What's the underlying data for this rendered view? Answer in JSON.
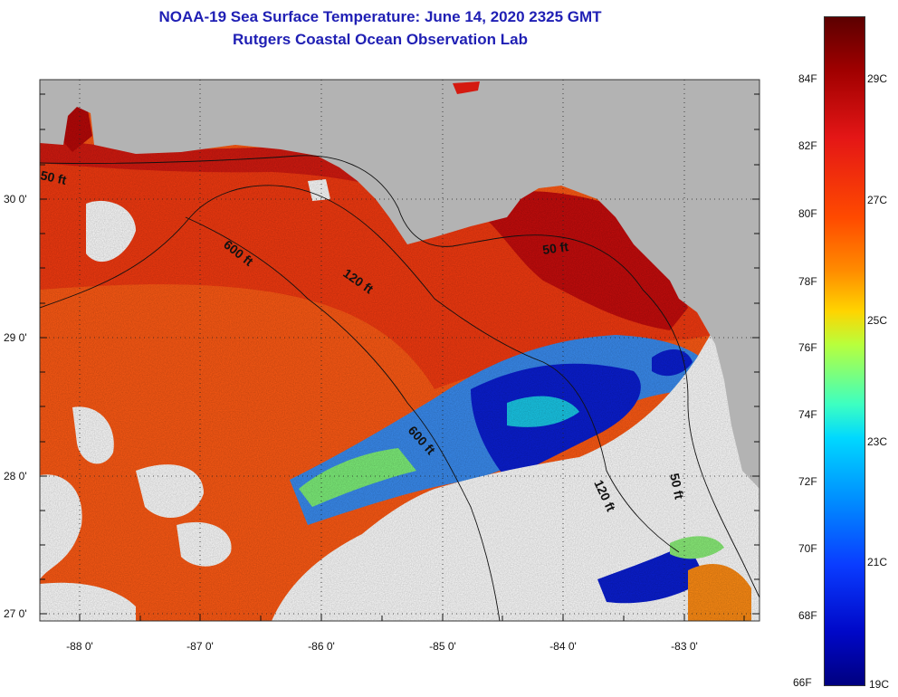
{
  "title": {
    "line1": "NOAA-19 Sea Surface Temperature:  June 14, 2020 2325 GMT",
    "line2": "Rutgers Coastal Ocean Observation Lab"
  },
  "axes": {
    "latitude_labels": [
      "30 0'",
      "29 0'",
      "28 0'",
      "27 0'"
    ],
    "longitude_labels": [
      "-88 0'",
      "-87 0'",
      "-86 0'",
      "-85 0'",
      "-84 0'",
      "-83 0'"
    ]
  },
  "contours": {
    "c50_left": "50 ft",
    "c600_top": "600 ft",
    "c120_top": "120 ft",
    "c50_right": "50 ft",
    "c600_mid": "600 ft",
    "c120_bottom": "120 ft",
    "c50_bottom": "50 ft"
  },
  "colorbar": {
    "fahrenheit": [
      "84F",
      "82F",
      "80F",
      "78F",
      "76F",
      "74F",
      "72F",
      "70F",
      "68F",
      "66F"
    ],
    "celsius": [
      "29C",
      "27C",
      "25C",
      "23C",
      "21C",
      "19C"
    ]
  },
  "colors": {
    "land": "#b3b3b3",
    "title": "#1f1fb4",
    "warm_water": "#ff5a14",
    "nearshore": "#c80c0c",
    "cloud": "#ffffff",
    "cold": "#0a1ed2"
  }
}
